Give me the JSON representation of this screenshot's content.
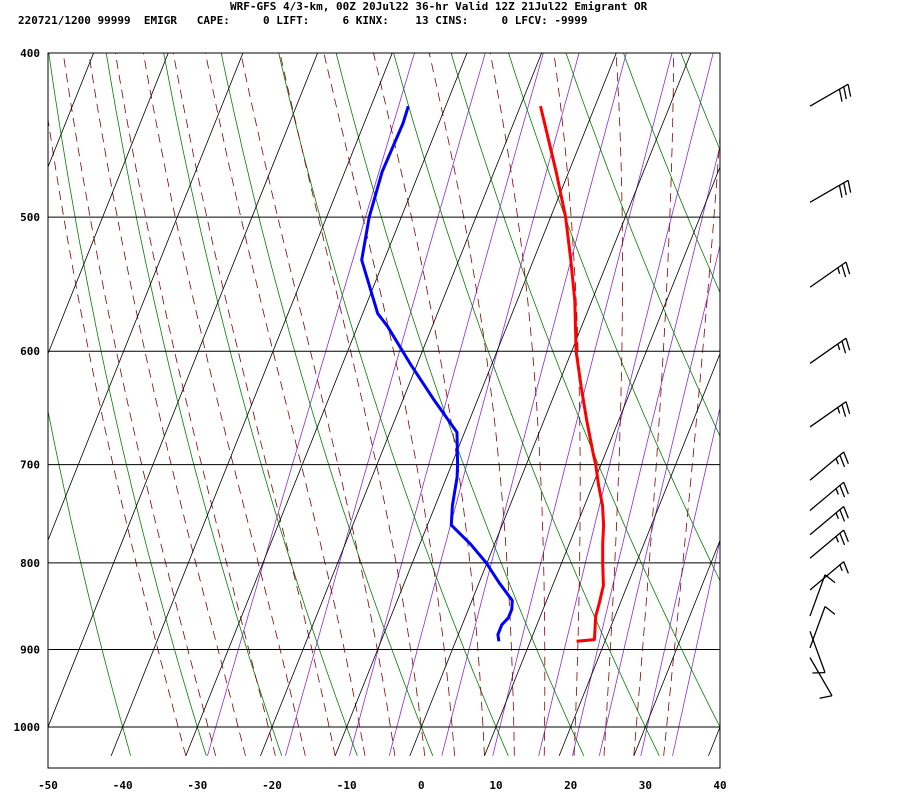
{
  "header": {
    "title": "WRF-GFS 4/3-km, 00Z 20Jul22 36-hr Valid 12Z 21Jul22 Emigrant OR",
    "params": "220721/1200 99999  EMIGR   CAPE:     0 LIFT:     6 KINX:    13 CINS:     0 LFCV: -9999"
  },
  "chart_data": {
    "type": "skew-t",
    "x_axis": {
      "quantity": "temperature (°C)",
      "range": [
        -50,
        40
      ],
      "ticks": [
        -50,
        -40,
        -30,
        -20,
        -10,
        0,
        10,
        20,
        30,
        40
      ]
    },
    "y_axis": {
      "quantity": "pressure (hPa)",
      "scale": "log",
      "range": [
        1040,
        400
      ],
      "ticks": [
        400,
        500,
        600,
        700,
        800,
        900,
        1000
      ]
    },
    "grid": true,
    "background_lines": {
      "isotherms_color": "#000000",
      "dry_adiabats_color": "#008000",
      "moist_adiabats_color": "#8b0000",
      "mixing_ratio_color": "#8a2be2"
    },
    "series": [
      {
        "kind": "temperature",
        "color": "#ff0000",
        "points": [
          [
            890,
            16.2
          ],
          [
            888,
            18.5
          ],
          [
            875,
            18.0
          ],
          [
            860,
            17.4
          ],
          [
            845,
            17.2
          ],
          [
            825,
            16.8
          ],
          [
            800,
            15.5
          ],
          [
            780,
            14.5
          ],
          [
            760,
            13.6
          ],
          [
            740,
            12.4
          ],
          [
            720,
            10.8
          ],
          [
            700,
            9.3
          ],
          [
            690,
            8.4
          ],
          [
            660,
            5.8
          ],
          [
            630,
            3.2
          ],
          [
            600,
            0.6
          ],
          [
            560,
            -2.3
          ],
          [
            530,
            -5.0
          ],
          [
            500,
            -8.0
          ],
          [
            470,
            -11.7
          ],
          [
            430,
            -17.3
          ]
        ]
      },
      {
        "kind": "dewpoint",
        "color": "#0000ff",
        "points": [
          [
            890,
            5.8
          ],
          [
            882,
            5.3
          ],
          [
            870,
            5.3
          ],
          [
            862,
            5.8
          ],
          [
            852,
            5.8
          ],
          [
            842,
            5.4
          ],
          [
            822,
            2.7
          ],
          [
            800,
            -0.1
          ],
          [
            780,
            -3.2
          ],
          [
            760,
            -6.8
          ],
          [
            740,
            -7.7
          ],
          [
            712,
            -8.6
          ],
          [
            700,
            -9.2
          ],
          [
            670,
            -11.0
          ],
          [
            640,
            -16.0
          ],
          [
            610,
            -21.0
          ],
          [
            580,
            -26.0
          ],
          [
            570,
            -28.0
          ],
          [
            530,
            -33.0
          ],
          [
            500,
            -34.3
          ],
          [
            470,
            -35.0
          ],
          [
            440,
            -34.8
          ],
          [
            430,
            -35.0
          ]
        ]
      }
    ],
    "wind_barbs": [
      {
        "pressure_hpa": 430,
        "direction_deg": 240,
        "speed_kt": 30
      },
      {
        "pressure_hpa": 490,
        "direction_deg": 240,
        "speed_kt": 30
      },
      {
        "pressure_hpa": 550,
        "direction_deg": 235,
        "speed_kt": 25
      },
      {
        "pressure_hpa": 610,
        "direction_deg": 235,
        "speed_kt": 25
      },
      {
        "pressure_hpa": 665,
        "direction_deg": 235,
        "speed_kt": 25
      },
      {
        "pressure_hpa": 715,
        "direction_deg": 230,
        "speed_kt": 25
      },
      {
        "pressure_hpa": 745,
        "direction_deg": 230,
        "speed_kt": 25
      },
      {
        "pressure_hpa": 770,
        "direction_deg": 230,
        "speed_kt": 25
      },
      {
        "pressure_hpa": 795,
        "direction_deg": 230,
        "speed_kt": 25
      },
      {
        "pressure_hpa": 830,
        "direction_deg": 230,
        "speed_kt": 15
      },
      {
        "pressure_hpa": 860,
        "direction_deg": 200,
        "speed_kt": 10
      },
      {
        "pressure_hpa": 878,
        "direction_deg": 340,
        "speed_kt": 10
      },
      {
        "pressure_hpa": 898,
        "direction_deg": 200,
        "speed_kt": 10
      },
      {
        "pressure_hpa": 910,
        "direction_deg": 330,
        "speed_kt": 10
      }
    ]
  }
}
